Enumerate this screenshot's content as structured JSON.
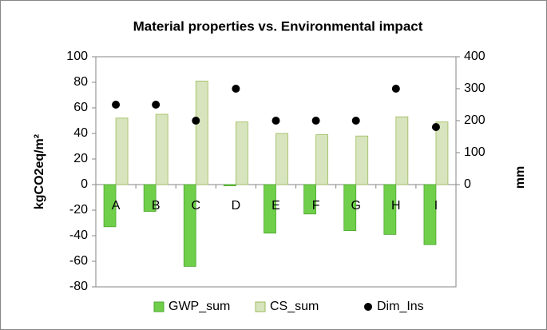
{
  "chart_data": {
    "type": "bar",
    "title": "Material properties vs. Environmental impact",
    "ylabel": "kgCO2eq/m²",
    "y2label": "mm",
    "categories": [
      "A",
      "B",
      "C",
      "D",
      "E",
      "F",
      "G",
      "H",
      "I"
    ],
    "series": [
      {
        "name": "GWP_sum",
        "color": "#6fcf4a",
        "type": "bar",
        "values": [
          -33,
          -21,
          -64,
          -1,
          -38,
          -23,
          -36,
          -39,
          -47
        ]
      },
      {
        "name": "CS_sum",
        "color": "#d7e4bd",
        "type": "bar",
        "values": [
          52,
          55,
          81,
          49,
          40,
          39,
          38,
          53,
          49
        ]
      },
      {
        "name": "Dim_Ins",
        "color": "#000000",
        "type": "scatter",
        "axis": "y2",
        "values": [
          250,
          250,
          200,
          300,
          200,
          200,
          200,
          300,
          180
        ]
      }
    ],
    "ylim": [
      -80,
      100
    ],
    "yticks": [
      -80,
      -60,
      -40,
      -20,
      0,
      20,
      40,
      60,
      80,
      100
    ],
    "y2lim": [
      -320,
      400
    ],
    "y2ticks": [
      0,
      100,
      200,
      300,
      400
    ],
    "grid": false,
    "legend": "bottom"
  }
}
